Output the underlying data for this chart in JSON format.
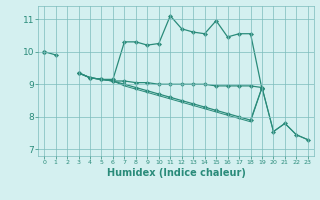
{
  "xlabel": "Humidex (Indice chaleur)",
  "x": [
    0,
    1,
    2,
    3,
    4,
    5,
    6,
    7,
    8,
    9,
    10,
    11,
    12,
    13,
    14,
    15,
    16,
    17,
    18,
    19,
    20,
    21,
    22,
    23
  ],
  "line1_x": [
    0,
    1
  ],
  "line1_y": [
    10.0,
    9.9
  ],
  "line2_y": [
    10.0,
    null,
    null,
    9.35,
    9.2,
    9.15,
    9.15,
    10.3,
    10.3,
    10.2,
    10.25,
    11.1,
    10.7,
    10.6,
    10.55,
    10.95,
    10.45,
    10.55,
    10.55,
    8.85,
    null,
    null,
    null,
    null
  ],
  "line3_y": [
    10.0,
    null,
    null,
    9.35,
    9.2,
    9.15,
    9.1,
    9.1,
    9.05,
    9.05,
    9.0,
    9.0,
    9.0,
    9.0,
    9.0,
    8.95,
    8.95,
    8.95,
    8.95,
    8.9,
    null,
    null,
    null,
    null
  ],
  "line4_y": [
    10.0,
    null,
    null,
    9.35,
    9.2,
    9.15,
    9.1,
    9.0,
    8.9,
    8.8,
    8.7,
    8.6,
    8.5,
    8.4,
    8.3,
    8.2,
    8.1,
    8.0,
    7.9,
    8.9,
    7.55,
    7.8,
    7.45,
    7.3
  ],
  "line5_y": [
    10.0,
    null,
    null,
    9.35,
    9.2,
    9.15,
    9.1,
    8.95,
    8.85,
    8.75,
    8.65,
    8.55,
    8.45,
    8.35,
    8.25,
    8.15,
    8.05,
    7.95,
    7.85,
    8.9,
    7.55,
    7.8,
    7.45,
    7.3
  ],
  "ylim": [
    6.8,
    11.4
  ],
  "yticks": [
    7,
    8,
    9,
    10,
    11
  ],
  "xticks": [
    0,
    1,
    2,
    3,
    4,
    5,
    6,
    7,
    8,
    9,
    10,
    11,
    12,
    13,
    14,
    15,
    16,
    17,
    18,
    19,
    20,
    21,
    22,
    23
  ],
  "line_color": "#2a8b7a",
  "bg_color": "#d4f0f0",
  "grid_color": "#7bbcbc",
  "marker": "D",
  "marker_size": 2.2,
  "lw": 0.9
}
